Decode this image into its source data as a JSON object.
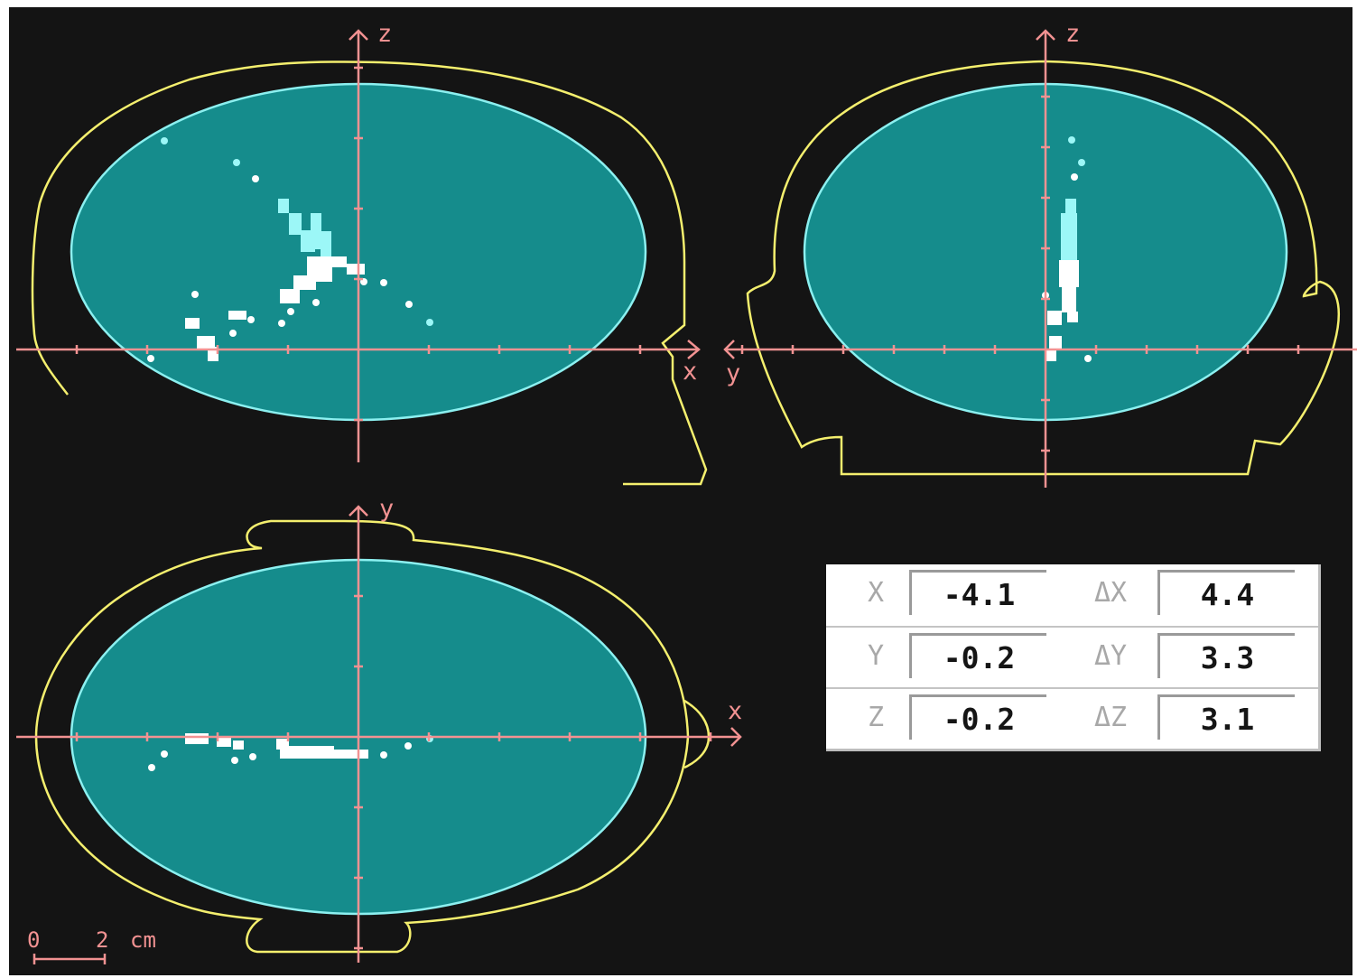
{
  "palette": {
    "background": "#141414",
    "axis": "#f29292",
    "head_outline": "#f4ef6e",
    "brain_fill": "#158c8c",
    "brain_edge": "#8cf0f0",
    "source_white": "#ffffff",
    "source_cyan": "#9cf7f7"
  },
  "views": {
    "sagittal_xz": {
      "horizontal_axis": "x",
      "vertical_axis": "z"
    },
    "coronal_yz": {
      "horizontal_axis": "y",
      "vertical_axis": "z"
    },
    "axial_xy": {
      "horizontal_axis": "x",
      "vertical_axis": "y"
    }
  },
  "scale_bar": {
    "start": "0",
    "end": "2",
    "unit": "cm"
  },
  "readout": {
    "rows": [
      {
        "axis": "X",
        "position": "-4.1",
        "delta_label": "ΔX",
        "delta": "4.4"
      },
      {
        "axis": "Y",
        "position": "-0.2",
        "delta_label": "ΔY",
        "delta": "3.3"
      },
      {
        "axis": "Z",
        "position": "-0.2",
        "delta_label": "ΔZ",
        "delta": "3.1"
      }
    ]
  }
}
